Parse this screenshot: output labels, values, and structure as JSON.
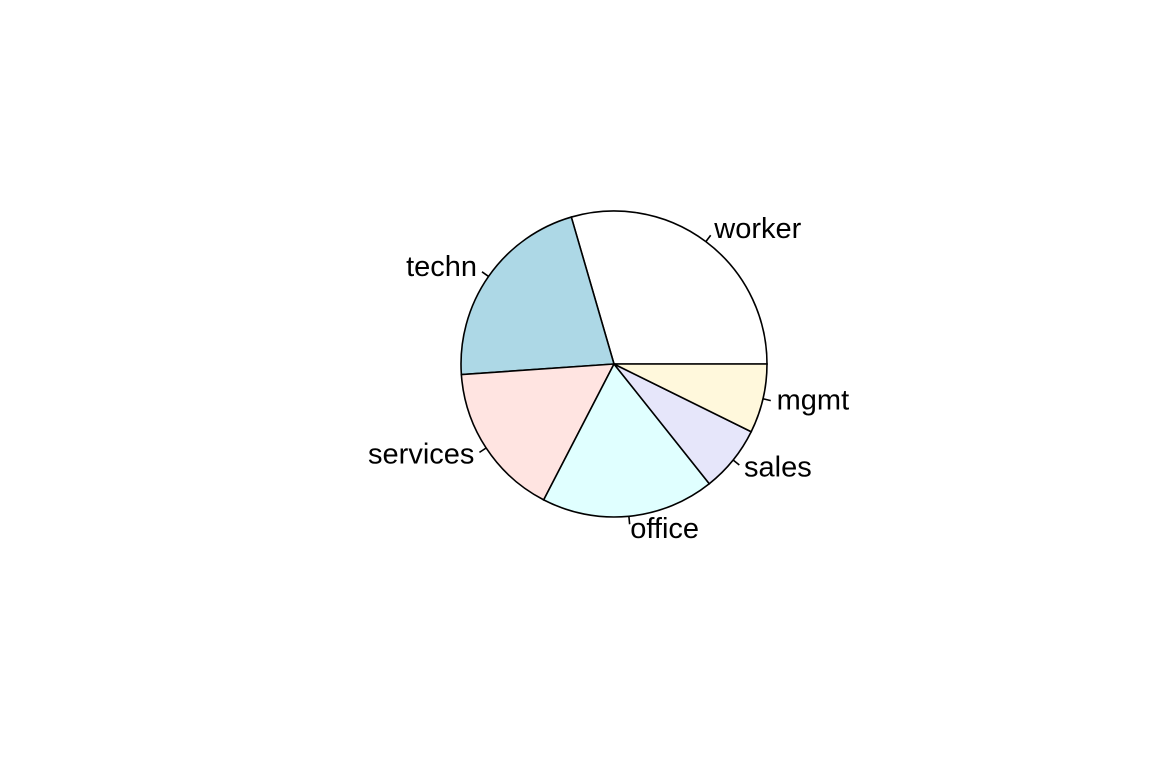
{
  "chart_data": {
    "type": "pie",
    "title": "",
    "start_angle_deg": 0,
    "direction": "counterclockwise",
    "slices": [
      {
        "label": "worker",
        "value": 0.295,
        "color": "#FFFFFF"
      },
      {
        "label": "techn",
        "value": 0.216,
        "color": "#ADD8E6"
      },
      {
        "label": "services",
        "value": 0.163,
        "color": "#FFE4E1"
      },
      {
        "label": "office",
        "value": 0.183,
        "color": "#E0FFFF"
      },
      {
        "label": "sales",
        "value": 0.07,
        "color": "#E6E6FA"
      },
      {
        "label": "mgmt",
        "value": 0.073,
        "color": "#FFF8DC"
      }
    ]
  }
}
